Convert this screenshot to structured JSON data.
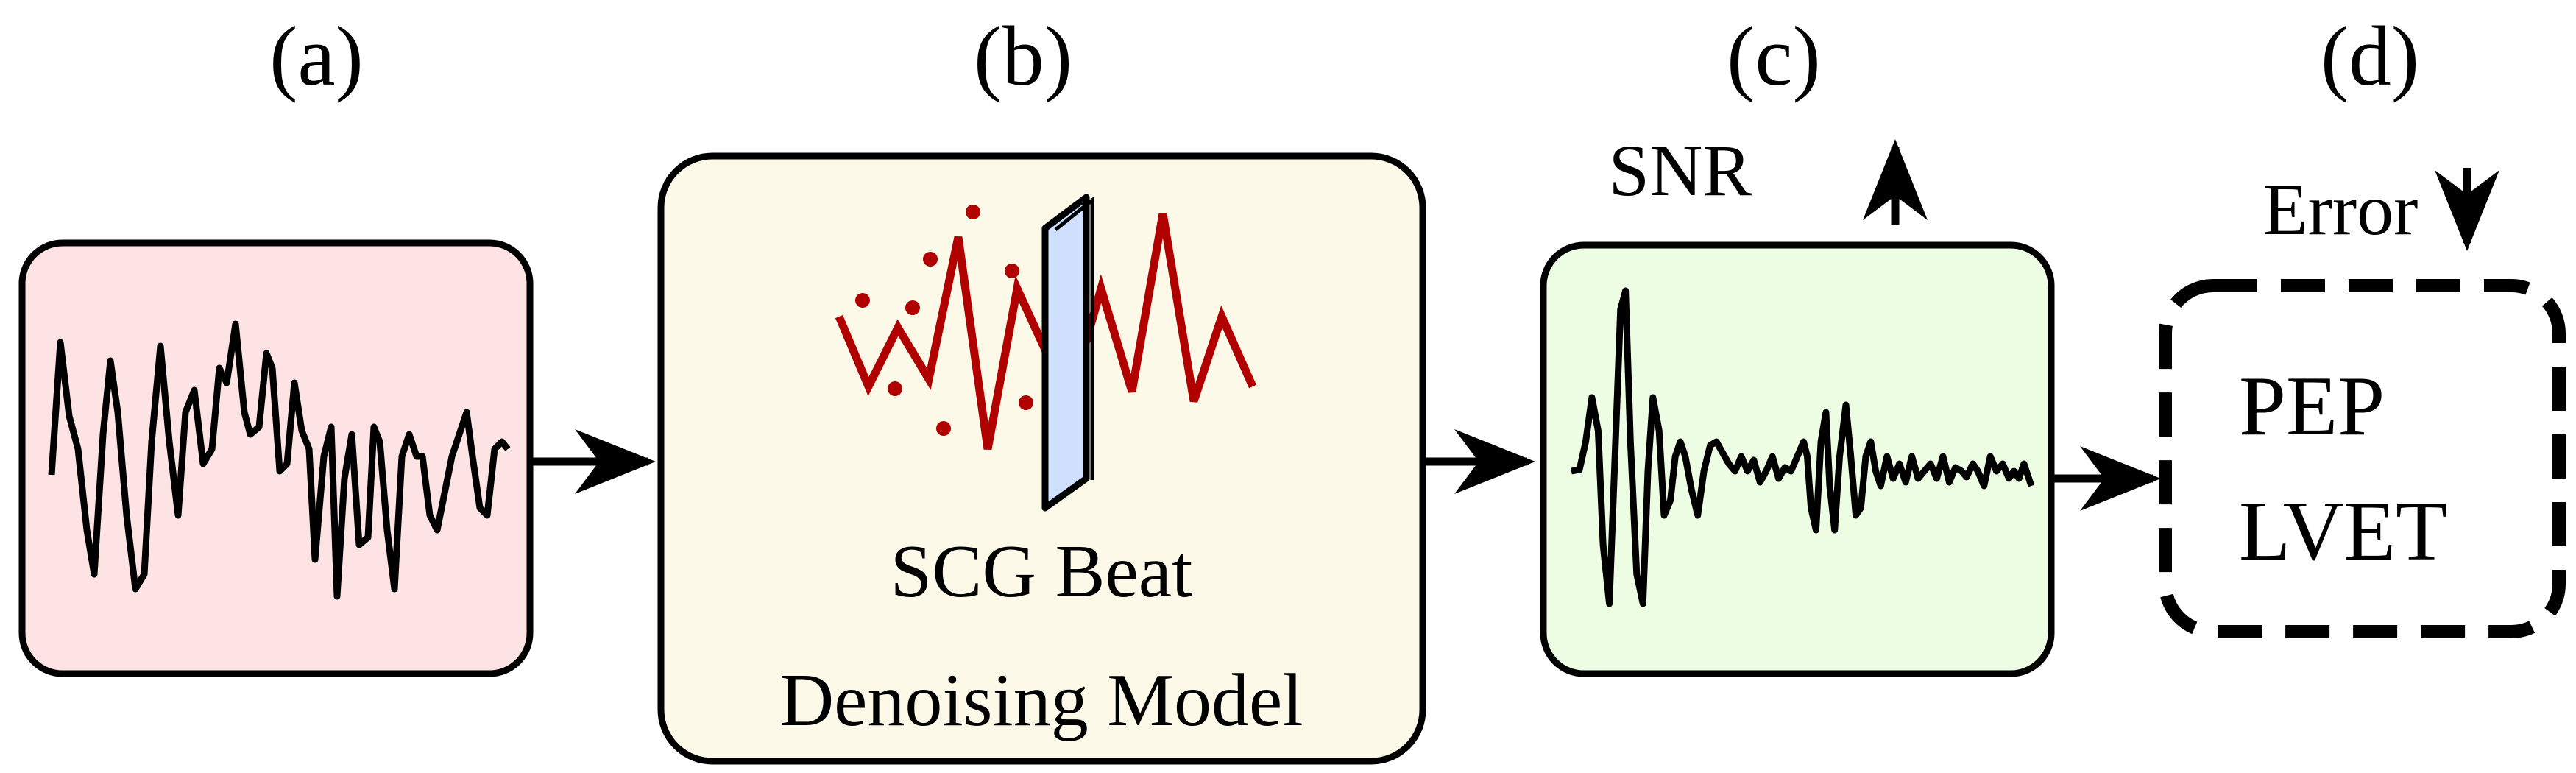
{
  "panels": {
    "a": {
      "label": "(a)"
    },
    "b": {
      "label": "(b)",
      "line1": "SCG Beat",
      "line2": "Denoising Model"
    },
    "c": {
      "label": "(c)",
      "metric": "SNR"
    },
    "d": {
      "label": "(d)",
      "metric": "Error",
      "out1": "PEP",
      "out2": "LVET"
    }
  },
  "colors": {
    "noisy_bg": "#fde3e3",
    "model_bg": "#fdf9e8",
    "clean_bg": "#edfde3",
    "model_wave": "#b00000",
    "filter_fill": "#cfe0ff"
  }
}
